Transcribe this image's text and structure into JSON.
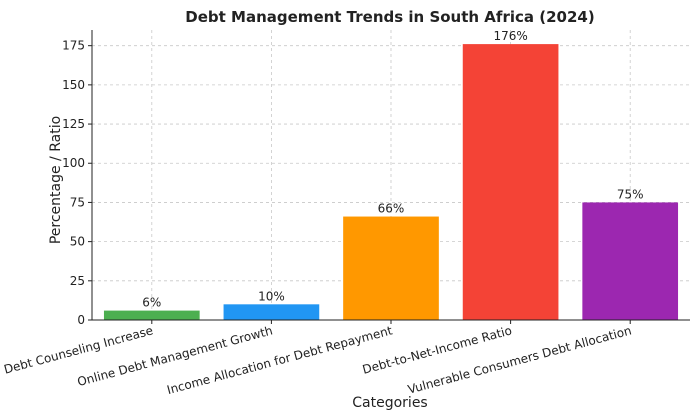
{
  "chart_data": {
    "type": "bar",
    "title": "Debt Management Trends in South Africa (2024)",
    "xlabel": "Categories",
    "ylabel": "Percentage / Ratio",
    "categories": [
      "Debt Counseling Increase",
      "Online Debt Management Growth",
      "Income Allocation for Debt Repayment",
      "Debt-to-Net-Income Ratio",
      "Vulnerable Consumers Debt Allocation"
    ],
    "values": [
      6,
      10,
      66,
      176,
      75
    ],
    "value_labels": [
      "6%",
      "10%",
      "66%",
      "176%",
      "75%"
    ],
    "colors": [
      "#4caf50",
      "#2196f3",
      "#ff9800",
      "#f44336",
      "#9c27b0"
    ],
    "ylim": [
      0,
      185
    ],
    "yticks": [
      0,
      25,
      50,
      75,
      100,
      125,
      150,
      175
    ],
    "grid": true,
    "legend": "none"
  }
}
